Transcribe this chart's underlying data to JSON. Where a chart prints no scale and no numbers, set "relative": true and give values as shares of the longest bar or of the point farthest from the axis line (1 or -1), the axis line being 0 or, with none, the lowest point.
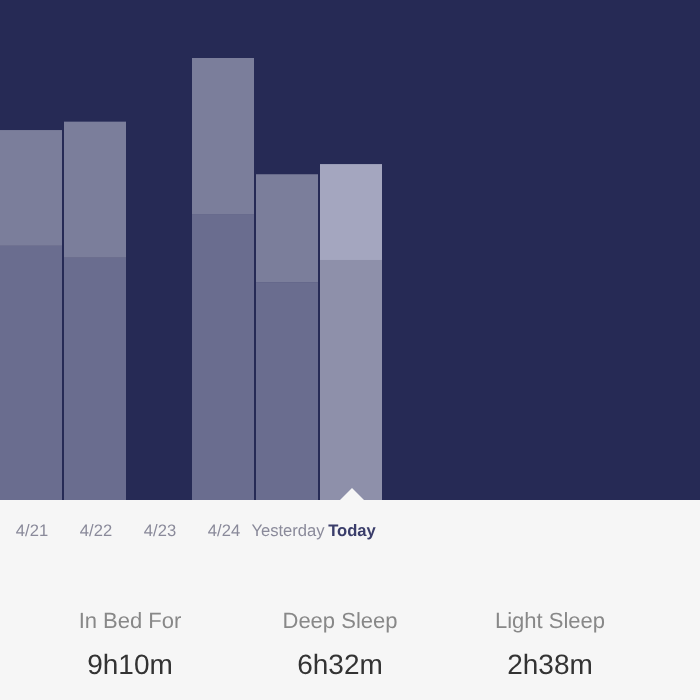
{
  "chart_data": {
    "type": "bar",
    "stacked": true,
    "relative": true,
    "categories": [
      "4/21",
      "4/22",
      "4/23",
      "4/24",
      "Yesterday",
      "Today"
    ],
    "series": [
      {
        "colors": [
          "#6a6d8f",
          "#6a6d8f",
          null,
          "#6a6d8f",
          "#6a6d8f",
          "#8e90aa"
        ],
        "values": [
          0.575,
          0.548,
          null,
          0.647,
          0.493,
          0.543
        ]
      },
      {
        "colors": [
          "#7b7e9b",
          "#7b7e9b",
          null,
          "#7b7e9b",
          "#7b7e9b",
          "#a4a6bf"
        ],
        "values": [
          0.262,
          0.308,
          null,
          0.353,
          0.244,
          0.217
        ]
      }
    ],
    "annotations": [
      "In Bed For",
      "9h10m",
      "Deep Sleep",
      "6h32m",
      "Light Sleep",
      "2h38m"
    ]
  }
}
